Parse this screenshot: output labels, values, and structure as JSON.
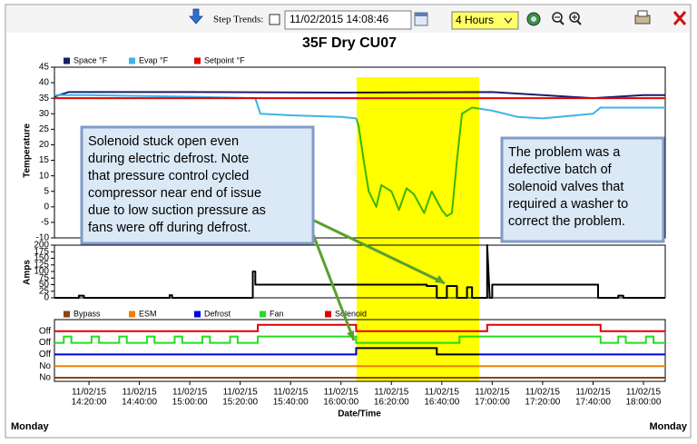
{
  "toolbar": {
    "step_label": "Step Trends:",
    "datetime": "11/02/2015 14:08:46",
    "range": "4 Hours"
  },
  "footer": {
    "left": "Monday",
    "right": "Monday"
  },
  "annotations": [
    {
      "lines": [
        "Solenoid stuck open even",
        "during electric defrost. Note",
        "that pressure control cycled",
        "compressor near end of issue",
        "due to low suction pressure as",
        "fans were off during defrost."
      ]
    },
    {
      "lines": [
        "The problem was a",
        "defective batch of",
        "solenoid valves that",
        "required a washer to",
        "correct the problem."
      ]
    }
  ],
  "chart_data": [
    {
      "type": "line",
      "title": "35F Dry CU07",
      "ylabel": "Temperature",
      "xlim": [
        "2015-11-02T14:06:18",
        "2015-11-02T18:08:39"
      ],
      "ylim": [
        -10,
        45
      ],
      "yticks": [
        -10,
        -5,
        0,
        5,
        10,
        15,
        20,
        25,
        30,
        35,
        40,
        45
      ],
      "series": [
        {
          "name": "Space °F",
          "color": "#1c1c6c",
          "x": [
            "2015-11-02T14:06:18",
            "2015-11-02T14:12:00",
            "2015-11-02T15:00:00",
            "2015-11-02T16:00:00",
            "2015-11-02T17:00:00",
            "2015-11-02T17:20:00",
            "2015-11-02T17:40:00",
            "2015-11-02T18:00:00",
            "2015-11-02T18:08:39"
          ],
          "values": [
            35.5,
            37,
            37,
            36.8,
            37,
            36,
            35,
            36,
            36
          ]
        },
        {
          "name": "Evap °F",
          "color": "#3cb4e6",
          "x": [
            "2015-11-02T14:06:18",
            "2015-11-02T14:20:00",
            "2015-11-02T15:00:00",
            "2015-11-02T15:26:00",
            "2015-11-02T15:28:00",
            "2015-11-02T15:40:00",
            "2015-11-02T16:00:00",
            "2015-11-02T16:06:00",
            "2015-11-02T16:07:00",
            "2015-11-02T16:09:00",
            "2015-11-02T16:11:00",
            "2015-11-02T16:14:00",
            "2015-11-02T16:16:00",
            "2015-11-02T16:20:00",
            "2015-11-02T16:23:00",
            "2015-11-02T16:26:00",
            "2015-11-02T16:29:00",
            "2015-11-02T16:33:00",
            "2015-11-02T16:36:00",
            "2015-11-02T16:40:00",
            "2015-11-02T16:42:00",
            "2015-11-02T16:44:00",
            "2015-11-02T16:46:00",
            "2015-11-02T16:48:00",
            "2015-11-02T16:52:00",
            "2015-11-02T17:00:00",
            "2015-11-02T17:10:00",
            "2015-11-02T17:20:00",
            "2015-11-02T17:40:00",
            "2015-11-02T17:43:00",
            "2015-11-02T18:08:39"
          ],
          "values": [
            36,
            36,
            35.5,
            35,
            30,
            29.5,
            29,
            28.5,
            26,
            15,
            5,
            0,
            7,
            5,
            -1,
            6,
            4,
            -2,
            5,
            -1,
            -3,
            -2,
            15,
            30,
            32,
            31,
            29,
            28.5,
            30,
            32,
            32
          ]
        },
        {
          "name": "Setpoint °F",
          "color": "#e00000",
          "x": [
            "2015-11-02T14:06:18",
            "2015-11-02T18:08:39"
          ],
          "values": [
            35,
            35
          ]
        }
      ]
    },
    {
      "type": "line",
      "ylabel": "Amps",
      "xlim": [
        "2015-11-02T14:06:18",
        "2015-11-02T18:08:39"
      ],
      "ylim": [
        0,
        200
      ],
      "yticks": [
        0,
        25,
        50,
        75,
        100,
        125,
        150,
        175,
        200
      ],
      "series": [
        {
          "color": "#000000",
          "x": [
            "2015-11-02T14:06:18",
            "2015-11-02T14:16:00",
            "2015-11-02T14:16:00",
            "2015-11-02T14:18:00",
            "2015-11-02T14:18:00",
            "2015-11-02T14:52:00",
            "2015-11-02T14:52:00",
            "2015-11-02T14:53:00",
            "2015-11-02T14:53:00",
            "2015-11-02T15:25:00",
            "2015-11-02T15:25:00",
            "2015-11-02T15:26:00",
            "2015-11-02T15:26:00",
            "2015-11-02T16:34:00",
            "2015-11-02T16:34:00",
            "2015-11-02T16:38:00",
            "2015-11-02T16:38:00",
            "2015-11-02T16:42:00",
            "2015-11-02T16:42:00",
            "2015-11-02T16:46:00",
            "2015-11-02T16:46:00",
            "2015-11-02T16:50:00",
            "2015-11-02T16:50:00",
            "2015-11-02T16:52:00",
            "2015-11-02T16:52:00",
            "2015-11-02T16:58:00",
            "2015-11-02T16:58:00",
            "2015-11-02T16:59:00",
            "2015-11-02T17:00:00",
            "2015-11-02T17:00:00",
            "2015-11-02T17:42:00",
            "2015-11-02T17:42:00",
            "2015-11-02T17:50:00",
            "2015-11-02T17:50:00",
            "2015-11-02T17:52:00",
            "2015-11-02T17:52:00",
            "2015-11-02T18:08:39"
          ],
          "values": [
            0,
            0,
            8,
            8,
            0,
            0,
            10,
            10,
            0,
            0,
            100,
            100,
            50,
            50,
            45,
            45,
            0,
            0,
            45,
            45,
            0,
            0,
            40,
            40,
            0,
            0,
            200,
            0,
            0,
            50,
            50,
            0,
            0,
            8,
            8,
            0,
            0
          ]
        }
      ]
    },
    {
      "type": "step",
      "xlabel": "Date/Time",
      "xlim": [
        "2015-11-02T14:06:18",
        "2015-11-02T18:08:39"
      ],
      "xticks": [
        {
          "value": "2015-11-02T14:20:00",
          "label": [
            "11/02/15",
            "14:20:00"
          ]
        },
        {
          "value": "2015-11-02T14:40:00",
          "label": [
            "11/02/15",
            "14:40:00"
          ]
        },
        {
          "value": "2015-11-02T15:00:00",
          "label": [
            "11/02/15",
            "15:00:00"
          ]
        },
        {
          "value": "2015-11-02T15:20:00",
          "label": [
            "11/02/15",
            "15:20:00"
          ]
        },
        {
          "value": "2015-11-02T15:40:00",
          "label": [
            "11/02/15",
            "15:40:00"
          ]
        },
        {
          "value": "2015-11-02T16:00:00",
          "label": [
            "11/02/15",
            "16:00:00"
          ]
        },
        {
          "value": "2015-11-02T16:20:00",
          "label": [
            "11/02/15",
            "16:20:00"
          ]
        },
        {
          "value": "2015-11-02T16:40:00",
          "label": [
            "11/02/15",
            "16:40:00"
          ]
        },
        {
          "value": "2015-11-02T17:00:00",
          "label": [
            "11/02/15",
            "17:00:00"
          ]
        },
        {
          "value": "2015-11-02T17:20:00",
          "label": [
            "11/02/15",
            "17:20:00"
          ]
        },
        {
          "value": "2015-11-02T17:40:00",
          "label": [
            "11/02/15",
            "17:40:00"
          ]
        },
        {
          "value": "2015-11-02T18:00:00",
          "label": [
            "11/02/15",
            "18:00:00"
          ]
        }
      ],
      "series": [
        {
          "name": "Bypass",
          "color": "#8b4513",
          "label": "No",
          "x": [
            "2015-11-02T14:06:18",
            "2015-11-02T18:08:39"
          ],
          "values": [
            0,
            0
          ]
        },
        {
          "name": "ESM",
          "color": "#f08000",
          "label": "No",
          "x": [
            "2015-11-02T14:06:18",
            "2015-11-02T18:08:39"
          ],
          "values": [
            0,
            0
          ]
        },
        {
          "name": "Defrost",
          "color": "#0000e0",
          "label": "Off",
          "x": [
            "2015-11-02T14:06:18",
            "2015-11-02T16:06:00",
            "2015-11-02T16:38:00",
            "2015-11-02T18:08:39"
          ],
          "values": [
            0,
            1,
            0,
            0
          ]
        },
        {
          "name": "Fan",
          "color": "#22dd22",
          "label": "Off",
          "x": [
            "2015-11-02T14:06:18",
            "2015-11-02T14:10:00",
            "2015-11-02T14:13:00",
            "2015-11-02T14:21:00",
            "2015-11-02T14:24:00",
            "2015-11-02T14:32:00",
            "2015-11-02T14:35:00",
            "2015-11-02T14:43:00",
            "2015-11-02T14:46:00",
            "2015-11-02T14:54:00",
            "2015-11-02T14:57:00",
            "2015-11-02T15:05:00",
            "2015-11-02T15:08:00",
            "2015-11-02T15:16:00",
            "2015-11-02T15:19:00",
            "2015-11-02T15:27:00",
            "2015-11-02T16:06:00",
            "2015-11-02T16:47:00",
            "2015-11-02T17:43:00",
            "2015-11-02T17:50:00",
            "2015-11-02T17:53:00",
            "2015-11-02T18:01:00",
            "2015-11-02T18:04:00",
            "2015-11-02T18:08:39"
          ],
          "values": [
            0,
            1,
            0,
            1,
            0,
            1,
            0,
            1,
            0,
            1,
            0,
            1,
            0,
            1,
            0,
            1,
            0,
            1,
            0,
            1,
            0,
            1,
            0,
            0
          ]
        },
        {
          "name": "Solenoid",
          "color": "#e00000",
          "label": "Off",
          "x": [
            "2015-11-02T14:06:18",
            "2015-11-02T15:27:00",
            "2015-11-02T16:06:00",
            "2015-11-02T16:58:00",
            "2015-11-02T17:43:00",
            "2015-11-02T18:08:39"
          ],
          "values": [
            0,
            1,
            0,
            1,
            0,
            0
          ]
        }
      ]
    }
  ]
}
